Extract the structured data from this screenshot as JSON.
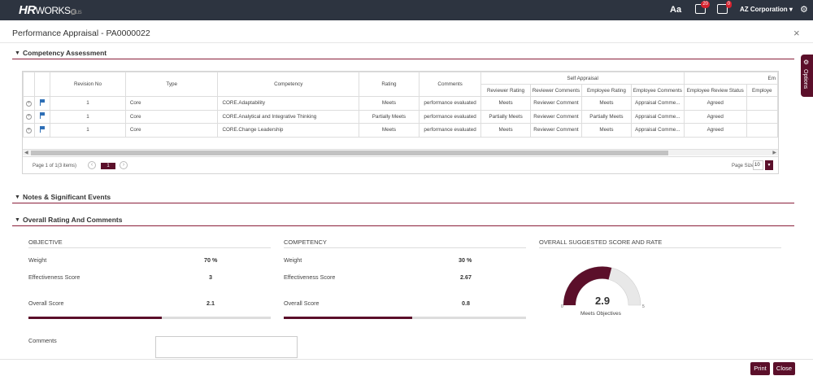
{
  "topbar": {
    "logo_hr": "HR",
    "logo_works": "WORKS",
    "logo_plus": "plus",
    "font_btn": "Aa",
    "notif_count": "20",
    "tasks_count": "0",
    "company": "AZ Corporation ▾"
  },
  "page": {
    "title": "Performance Appraisal - PA0000022",
    "close": "×"
  },
  "sections": {
    "competency": "Competency Assessment",
    "notes": "Notes & Significant Events",
    "overall": "Overall Rating And Comments"
  },
  "grid": {
    "group_header": "Self Appraisal",
    "group_header_2": "Em",
    "columns": [
      "Revision No",
      "Type",
      "Competency",
      "Rating",
      "Comments",
      "Reviewer Rating",
      "Reviewer Comments",
      "Employee Rating",
      "Employee Comments",
      "Employee Review Status",
      "Employe"
    ],
    "rows": [
      {
        "rev": "1",
        "type": "Core",
        "competency": "CORE.Adaptability",
        "rating": "Meets",
        "comments": "performance evaluated",
        "rev_rating": "Meets",
        "rev_comments": "Reviewer Comment",
        "emp_rating": "Meets",
        "emp_comments": "Appraisal Comme...",
        "status": "Agreed"
      },
      {
        "rev": "1",
        "type": "Core",
        "competency": "CORE.Analytical and Integrative Thinking",
        "rating": "Partially Meets",
        "comments": "performance evaluated",
        "rev_rating": "Partially Meets",
        "rev_comments": "Reviewer Comment",
        "emp_rating": "Partially Meets",
        "emp_comments": "Appraisal Comme...",
        "status": "Agreed"
      },
      {
        "rev": "1",
        "type": "Core",
        "competency": "CORE.Change Leadership",
        "rating": "Meets",
        "comments": "performance evaluated",
        "rev_rating": "Meets",
        "rev_comments": "Reviewer Comment",
        "emp_rating": "Meets",
        "emp_comments": "Appraisal Comme...",
        "status": "Agreed"
      }
    ],
    "pager_info": "Page 1 of 1(3 items)",
    "current_page": "1",
    "page_size_label": "Page Size",
    "page_size": "10"
  },
  "objective": {
    "title": "OBJECTIVE",
    "weight_label": "Weight",
    "weight": "70 %",
    "eff_label": "Effectiveness Score",
    "eff": "3",
    "overall_label": "Overall Score",
    "overall": "2.1",
    "progress": 0.55
  },
  "competency": {
    "title": "COMPETENCY",
    "weight_label": "Weight",
    "weight": "30 %",
    "eff_label": "Effectiveness Score",
    "eff": "2.67",
    "overall_label": "Overall Score",
    "overall": "0.8",
    "progress": 0.53
  },
  "suggested": {
    "title": "OVERALL SUGGESTED SCORE AND RATE",
    "score": "2.9",
    "rating": "Meets Objectives",
    "min": "0",
    "max": "5",
    "fraction": 0.58
  },
  "comments_label": "Comments",
  "buttons": {
    "print": "Print",
    "close": "Close"
  },
  "options_label": "Options",
  "colors": {
    "brand": "#5b0f2a",
    "topbar": "#2d3440"
  }
}
